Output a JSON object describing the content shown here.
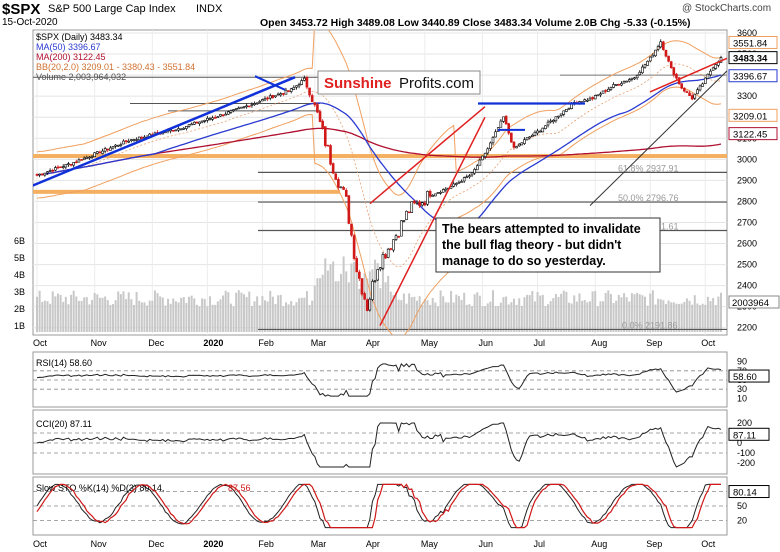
{
  "header": {
    "symbol": "$SPX",
    "name": "S&P 500 Large Cap Index",
    "exchange": "INDX",
    "date": "15-Oct-2020",
    "watermark": "@ StockCharts.com",
    "ohlc": "Open 3453.72  High 3489.08  Low 3440.89  Close 3483.34  Volume 2.0B  Chg -5.33 (-0.15%)"
  },
  "legend": {
    "price": "$SPX (Daily) 3483.34",
    "ma50": "MA(50) 3396.67",
    "ma200": "MA(200) 3122.45",
    "bb": "BB(20,2.0) 3209.01 - 3380.43 - 3551.84",
    "volume": "Volume 2,003,964,032"
  },
  "colors": {
    "ma50": "#2a3ad0",
    "ma200": "#b01030",
    "bb": "#f0a060",
    "candle_up": "#000000",
    "candle_down": "#d01818",
    "fib_line": "#555555",
    "support_orange": "#f4b060",
    "trend_blue": "#1030d8",
    "trend_red": "#e02020",
    "volume_bar": "#c8c8c8",
    "osc_fill": "#4a7a4a"
  },
  "brand": {
    "part1": "Sunshine",
    "part2": "Profits.com"
  },
  "annotation": "The bears attempted to invalidate the bull flag theory - but didn't manage to do so yesterday.",
  "fib_labels": [
    "61.8% 2937.91",
    "50.0% 2796.76",
    "38.2% 2661.61",
    "0.0% 2191.86"
  ],
  "price_axis": [
    "3600",
    "3500",
    "3400",
    "3300",
    "3200",
    "3100",
    "3000",
    "2900",
    "2800",
    "2700",
    "2600",
    "2500",
    "2400",
    "2300",
    "2200"
  ],
  "price_badges": [
    "3551.84",
    "3483.34",
    "3396.67",
    "3209.01",
    "3122.45"
  ],
  "volume_axis": [
    "6B",
    "5B",
    "4B",
    "3B",
    "2B",
    "1B"
  ],
  "volume_badge": "2003964",
  "rsi": {
    "label": "RSI(14) 58.60",
    "badge": "58.60",
    "ticks": [
      "90",
      "70",
      "50",
      "30",
      "10"
    ]
  },
  "cci": {
    "label": "CCI(20) 87.11",
    "badge": "87.11",
    "ticks": [
      "200",
      "100",
      "0",
      "-100",
      "-200"
    ]
  },
  "sto": {
    "label": "Slow STO %K(14) %D(3) 80.14,",
    "label_d": "87.56",
    "badge": "80.14",
    "ticks": [
      "80",
      "50",
      "20"
    ]
  },
  "x_labels": [
    "Oct",
    "Nov",
    "Dec",
    "2020",
    "Feb",
    "Mar",
    "Apr",
    "May",
    "Jun",
    "Jul",
    "Aug",
    "Sep",
    "Oct"
  ],
  "chart_data": {
    "type": "line",
    "title": "$SPX S&P 500 Large Cap Index INDX",
    "x": [
      "Oct",
      "Nov",
      "Dec",
      "2020",
      "Feb",
      "Mar",
      "Apr",
      "May",
      "Jun",
      "Jul",
      "Aug",
      "Sep",
      "Oct"
    ],
    "ylim": [
      2150,
      3600
    ],
    "series": [
      {
        "name": "$SPX (Daily)",
        "values": [
          2930,
          3090,
          3150,
          3240,
          3370,
          2480,
          2750,
          2950,
          3180,
          3120,
          3300,
          3500,
          3483
        ]
      },
      {
        "name": "MA(50)",
        "values": [
          2960,
          3020,
          3110,
          3200,
          3280,
          3100,
          2700,
          2850,
          3000,
          3080,
          3230,
          3360,
          3397
        ]
      },
      {
        "name": "MA(200)",
        "values": [
          2870,
          2900,
          2930,
          2980,
          3030,
          3030,
          2990,
          2980,
          3000,
          3020,
          3050,
          3100,
          3122
        ]
      }
    ]
  }
}
